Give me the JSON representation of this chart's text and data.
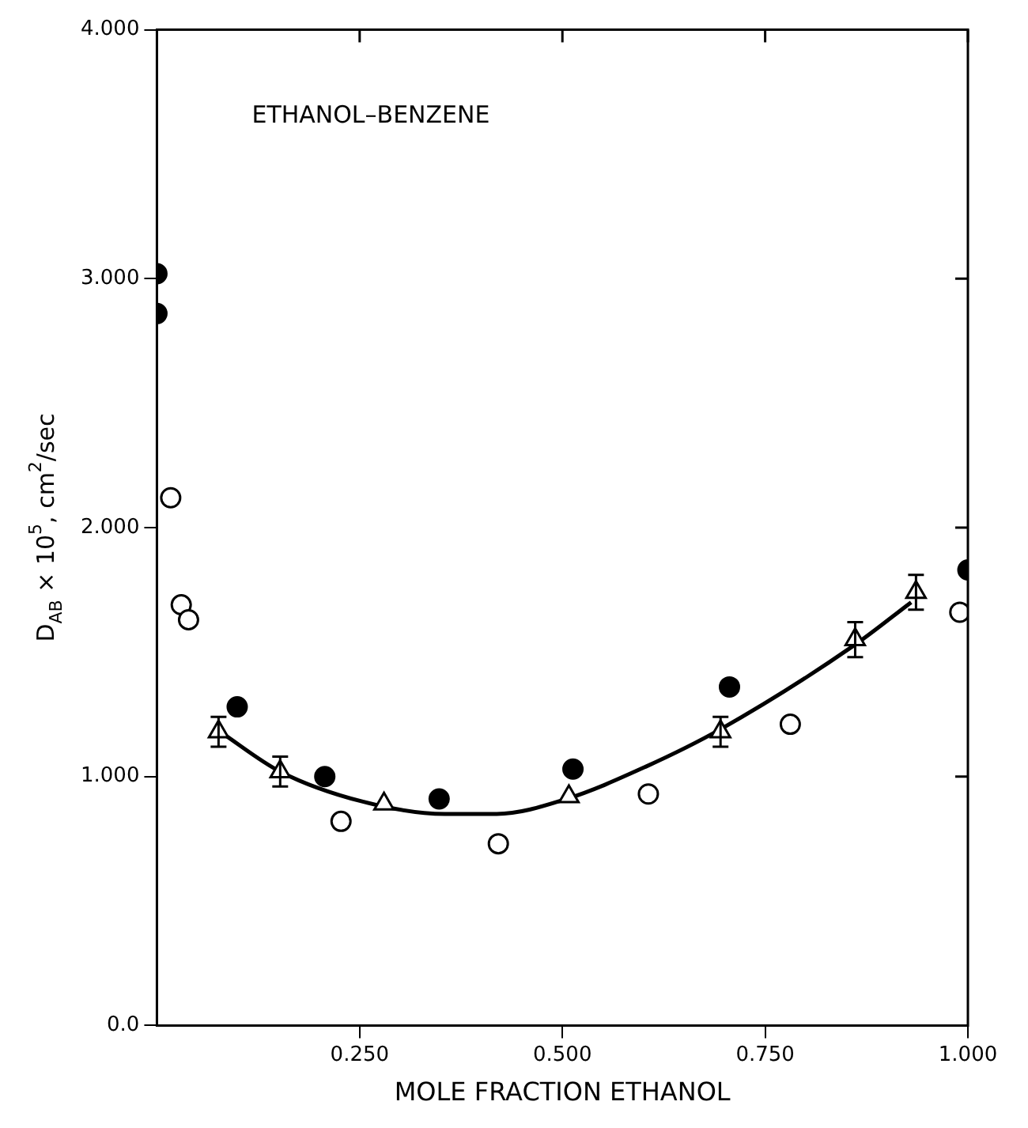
{
  "chart_data": {
    "type": "scatter",
    "xlabel": "MOLE FRACTION ETHANOL",
    "ylabel": "D$_{AB}$ × 10$^{5}$, cm$^{2}$/sec",
    "annotations": [
      "ETHANOL–BENZENE"
    ],
    "xlim": [
      0,
      1
    ],
    "xticks": [
      {
        "value": 0.25,
        "label": "0.250"
      },
      {
        "value": 0.5,
        "label": "0.500"
      },
      {
        "value": 0.75,
        "label": "0.750"
      },
      {
        "value": 1,
        "label": "1.000"
      }
    ],
    "ylim": [
      0,
      4
    ],
    "yticks": [
      {
        "value": 0,
        "label": "0.0"
      },
      {
        "value": 1,
        "label": "1.000"
      },
      {
        "value": 2,
        "label": "2.000"
      },
      {
        "value": 3,
        "label": "3.000"
      },
      {
        "value": 4,
        "label": "4.000"
      }
    ],
    "grid": false,
    "legend": false,
    "series": [
      {
        "type": "scatter",
        "color": "#000000",
        "marker": "circle",
        "x": [
          0.0,
          0.0,
          0.099,
          0.207,
          0.348,
          0.513,
          0.706,
          1.0
        ],
        "values": [
          3.02,
          2.86,
          1.28,
          1.0,
          0.91,
          1.03,
          1.36,
          1.83
        ]
      },
      {
        "type": "scatter",
        "color": "#000000",
        "marker": "circle",
        "x": [
          0.017,
          0.03,
          0.039,
          0.227,
          0.421,
          0.606,
          0.781,
          0.99
        ],
        "values": [
          2.12,
          1.69,
          1.63,
          0.82,
          0.73,
          0.93,
          1.21,
          1.66
        ]
      },
      {
        "type": "scatter",
        "color": "#000000",
        "marker": "triangle",
        "x": [
          0.076,
          0.152,
          0.28,
          0.508,
          0.695,
          0.861,
          0.936
        ],
        "values": [
          1.18,
          1.02,
          0.89,
          0.92,
          1.18,
          1.55,
          1.74
        ],
        "errors": [
          0.06,
          0.06,
          null,
          null,
          0.06,
          0.07,
          0.07
        ]
      },
      {
        "type": "line",
        "color": "#000000",
        "marker": "none",
        "line_style": "solid",
        "x": [
          0.078,
          0.152,
          0.253,
          0.355,
          0.419,
          0.505,
          0.603,
          0.695,
          0.861,
          0.93
        ],
        "values": [
          1.18,
          1.02,
          0.9,
          0.85,
          0.85,
          0.91,
          1.04,
          1.19,
          1.53,
          1.7
        ]
      }
    ]
  }
}
